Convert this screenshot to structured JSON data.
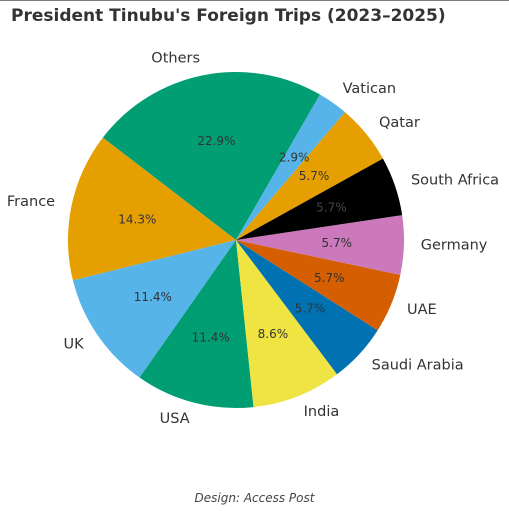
{
  "chart_data": {
    "type": "pie",
    "title": "President Tinubu's Foreign Trips (2023–2025)",
    "start_angle_deg": 60,
    "direction": "counterclockwise",
    "slices": [
      {
        "label": "Others",
        "value": 22.9,
        "pct_label": "22.9%",
        "color": "#029e73",
        "pct_color": "#333333"
      },
      {
        "label": "France",
        "value": 14.3,
        "pct_label": "14.3%",
        "color": "#e69f00",
        "pct_color": "#333333"
      },
      {
        "label": "UK",
        "value": 11.4,
        "pct_label": "11.4%",
        "color": "#56b4e9",
        "pct_color": "#333333"
      },
      {
        "label": "USA",
        "value": 11.4,
        "pct_label": "11.4%",
        "color": "#029e73",
        "pct_color": "#333333"
      },
      {
        "label": "India",
        "value": 8.6,
        "pct_label": "8.6%",
        "color": "#f0e442",
        "pct_color": "#333333"
      },
      {
        "label": "Saudi Arabia",
        "value": 5.7,
        "pct_label": "5.7%",
        "color": "#0072b2",
        "pct_color": "#333333"
      },
      {
        "label": "UAE",
        "value": 5.7,
        "pct_label": "5.7%",
        "color": "#d55e00",
        "pct_color": "#333333"
      },
      {
        "label": "Germany",
        "value": 5.7,
        "pct_label": "5.7%",
        "color": "#cc78bc",
        "pct_color": "#333333"
      },
      {
        "label": "South Africa",
        "value": 5.7,
        "pct_label": "5.7%",
        "color": "#000000",
        "pct_color": "#444444"
      },
      {
        "label": "Qatar",
        "value": 5.7,
        "pct_label": "5.7%",
        "color": "#e69f00",
        "pct_color": "#333333"
      },
      {
        "label": "Vatican",
        "value": 2.9,
        "pct_label": "2.9%",
        "color": "#56b4e9",
        "pct_color": "#333333"
      }
    ]
  },
  "caption": "Design: Access Post"
}
